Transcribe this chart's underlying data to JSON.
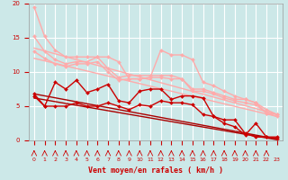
{
  "bg_color": "#cce8e8",
  "grid_color": "#ffffff",
  "xlabel": "Vent moyen/en rafales ( km/h )",
  "xlim": [
    -0.5,
    23.5
  ],
  "ylim": [
    0,
    20
  ],
  "yticks": [
    0,
    5,
    10,
    15,
    20
  ],
  "xticks": [
    0,
    1,
    2,
    3,
    4,
    5,
    6,
    7,
    8,
    9,
    10,
    11,
    12,
    13,
    14,
    15,
    16,
    17,
    18,
    19,
    20,
    21,
    22,
    23
  ],
  "series": [
    {
      "x": [
        0,
        1,
        2,
        3,
        4,
        5,
        6,
        7,
        8,
        9,
        10,
        11,
        12,
        13,
        14,
        15,
        16,
        17,
        18,
        19,
        20,
        21,
        22,
        23
      ],
      "y": [
        19.5,
        15.2,
        13.2,
        12.2,
        12.2,
        12.2,
        12.2,
        12.2,
        11.5,
        9.0,
        9.0,
        9.2,
        13.2,
        12.5,
        12.5,
        11.8,
        8.5,
        8.0,
        7.2,
        6.5,
        6.0,
        5.5,
        4.5,
        3.8
      ],
      "color": "#ffaaaa",
      "lw": 1.0,
      "marker": "D",
      "ms": 2.0
    },
    {
      "x": [
        0,
        1,
        2,
        3,
        4,
        5,
        6,
        7,
        8,
        9,
        10,
        11,
        12,
        13,
        14,
        15,
        16,
        17,
        18,
        19,
        20,
        21,
        22,
        23
      ],
      "y": [
        15.2,
        13.0,
        11.8,
        11.2,
        11.5,
        11.5,
        12.2,
        10.5,
        9.2,
        9.5,
        9.5,
        9.5,
        9.5,
        9.5,
        9.0,
        7.5,
        7.5,
        7.0,
        6.5,
        6.0,
        6.0,
        5.5,
        4.0,
        3.8
      ],
      "color": "#ffaaaa",
      "lw": 1.0,
      "marker": "D",
      "ms": 2.0
    },
    {
      "x": [
        0,
        1,
        2,
        3,
        4,
        5,
        6,
        7,
        8,
        9,
        10,
        11,
        12,
        13,
        14,
        15,
        16,
        17,
        18,
        19,
        20,
        21,
        22,
        23
      ],
      "y": [
        13.0,
        12.0,
        11.2,
        10.8,
        11.2,
        11.2,
        11.5,
        10.0,
        8.8,
        9.0,
        9.0,
        9.2,
        9.2,
        9.0,
        9.0,
        7.2,
        7.2,
        6.8,
        6.2,
        5.8,
        5.5,
        5.2,
        4.0,
        3.5
      ],
      "color": "#ffaaaa",
      "lw": 1.0,
      "marker": "D",
      "ms": 2.0
    },
    {
      "x": [
        0,
        23
      ],
      "y": [
        13.5,
        3.8
      ],
      "color": "#ffaaaa",
      "lw": 1.0,
      "marker": null,
      "ms": 0
    },
    {
      "x": [
        0,
        23
      ],
      "y": [
        12.0,
        3.5
      ],
      "color": "#ffaaaa",
      "lw": 1.0,
      "marker": null,
      "ms": 0
    },
    {
      "x": [
        0,
        1,
        2,
        3,
        4,
        5,
        6,
        7,
        8,
        9,
        10,
        11,
        12,
        13,
        14,
        15,
        16,
        17,
        18,
        19,
        20,
        21,
        22,
        23
      ],
      "y": [
        6.8,
        5.0,
        8.5,
        7.5,
        8.8,
        7.0,
        7.5,
        8.2,
        5.8,
        5.5,
        7.2,
        7.5,
        7.5,
        6.0,
        6.5,
        6.5,
        6.2,
        3.5,
        3.0,
        3.0,
        1.0,
        0.5,
        0.5,
        0.5
      ],
      "color": "#cc0000",
      "lw": 1.0,
      "marker": "D",
      "ms": 2.0
    },
    {
      "x": [
        0,
        1,
        2,
        3,
        4,
        5,
        6,
        7,
        8,
        9,
        10,
        11,
        12,
        13,
        14,
        15,
        16,
        17,
        18,
        19,
        20,
        21,
        22,
        23
      ],
      "y": [
        6.5,
        5.0,
        5.0,
        5.0,
        5.5,
        5.0,
        5.0,
        5.5,
        5.0,
        4.5,
        5.2,
        5.0,
        5.8,
        5.5,
        5.5,
        5.2,
        3.8,
        3.5,
        2.5,
        2.0,
        0.8,
        2.5,
        0.5,
        0.3
      ],
      "color": "#cc0000",
      "lw": 1.0,
      "marker": "D",
      "ms": 2.0
    },
    {
      "x": [
        0,
        23
      ],
      "y": [
        6.8,
        0.2
      ],
      "color": "#aa0000",
      "lw": 1.0,
      "marker": null,
      "ms": 0
    },
    {
      "x": [
        0,
        23
      ],
      "y": [
        6.2,
        0.1
      ],
      "color": "#aa0000",
      "lw": 1.0,
      "marker": null,
      "ms": 0
    }
  ],
  "wind_symbols": {
    "x": [
      0,
      1,
      2,
      3,
      4,
      5,
      6,
      7,
      8,
      9,
      10,
      11,
      12,
      13,
      14,
      15,
      16,
      17,
      18,
      19,
      20,
      21,
      22
    ],
    "angles": [
      225,
      225,
      270,
      270,
      270,
      270,
      270,
      270,
      270,
      270,
      270,
      270,
      315,
      315,
      315,
      315,
      315,
      315,
      315,
      315,
      0,
      0,
      0
    ]
  }
}
